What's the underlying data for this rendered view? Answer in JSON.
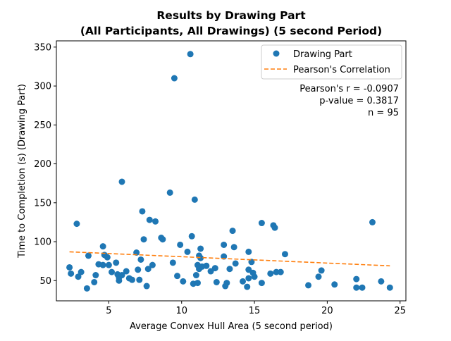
{
  "chart_data": {
    "type": "scatter",
    "title_line1": "Results by Drawing Part",
    "title_line2": "(All Participants, All Drawings) (5 second Period)",
    "xlabel": "Average Convex Hull Area (5 second period)",
    "ylabel": "Time to Completion (s) (Drawing Part)",
    "xlim": [
      1.4,
      25.4
    ],
    "ylim": [
      24,
      358
    ],
    "xticks": [
      5,
      10,
      15,
      20,
      25
    ],
    "yticks": [
      50,
      100,
      150,
      200,
      250,
      300,
      350
    ],
    "legend_position": "top-right",
    "series": [
      {
        "name": "Drawing Part",
        "type": "scatter",
        "color": "#1f77b4",
        "points": [
          [
            2.3,
            67
          ],
          [
            2.4,
            59
          ],
          [
            2.8,
            123
          ],
          [
            2.9,
            55
          ],
          [
            3.5,
            40
          ],
          [
            3.6,
            82
          ],
          [
            4.0,
            48
          ],
          [
            4.1,
            57
          ],
          [
            4.3,
            71
          ],
          [
            4.6,
            94
          ],
          [
            4.6,
            70
          ],
          [
            4.7,
            83
          ],
          [
            4.9,
            80
          ],
          [
            5.0,
            70
          ],
          [
            5.2,
            61
          ],
          [
            5.5,
            73
          ],
          [
            5.6,
            58
          ],
          [
            5.7,
            50
          ],
          [
            5.7,
            54
          ],
          [
            5.9,
            177
          ],
          [
            5.9,
            57
          ],
          [
            6.2,
            62
          ],
          [
            6.4,
            53
          ],
          [
            6.6,
            51
          ],
          [
            6.9,
            86
          ],
          [
            7.0,
            64
          ],
          [
            7.1,
            51
          ],
          [
            7.2,
            77
          ],
          [
            7.3,
            139
          ],
          [
            7.4,
            103
          ],
          [
            7.6,
            43
          ],
          [
            7.7,
            65
          ],
          [
            7.8,
            128
          ],
          [
            8.2,
            126
          ],
          [
            8.6,
            105
          ],
          [
            8.7,
            103
          ],
          [
            9.2,
            163
          ],
          [
            9.4,
            73
          ],
          [
            9.5,
            310
          ],
          [
            9.7,
            56
          ],
          [
            9.9,
            96
          ],
          [
            10.1,
            49
          ],
          [
            10.4,
            87
          ],
          [
            10.6,
            341
          ],
          [
            10.7,
            107
          ],
          [
            10.8,
            46
          ],
          [
            10.9,
            154
          ],
          [
            11.0,
            57
          ],
          [
            11.1,
            47
          ],
          [
            11.1,
            70
          ],
          [
            11.2,
            65
          ],
          [
            11.2,
            82
          ],
          [
            11.3,
            91
          ],
          [
            11.3,
            79
          ],
          [
            11.4,
            68
          ],
          [
            11.7,
            69
          ],
          [
            12.3,
            66
          ],
          [
            12.4,
            48
          ],
          [
            12.9,
            96
          ],
          [
            12.9,
            81
          ],
          [
            13.1,
            47
          ],
          [
            13.0,
            43
          ],
          [
            13.3,
            65
          ],
          [
            13.5,
            114
          ],
          [
            13.6,
            93
          ],
          [
            13.7,
            72
          ],
          [
            14.2,
            49
          ],
          [
            14.5,
            42
          ],
          [
            14.6,
            87
          ],
          [
            14.6,
            53
          ],
          [
            14.6,
            64
          ],
          [
            14.8,
            74
          ],
          [
            14.9,
            60
          ],
          [
            15.5,
            124
          ],
          [
            15.5,
            47
          ],
          [
            16.1,
            59
          ],
          [
            16.3,
            121
          ],
          [
            16.4,
            118
          ],
          [
            16.5,
            61
          ],
          [
            16.8,
            61
          ],
          [
            17.1,
            84
          ],
          [
            18.7,
            44
          ],
          [
            19.4,
            55
          ],
          [
            19.6,
            63
          ],
          [
            22.0,
            52
          ],
          [
            22.0,
            41
          ],
          [
            22.4,
            41
          ],
          [
            23.1,
            125
          ],
          [
            23.7,
            49
          ],
          [
            24.3,
            41
          ],
          [
            3.1,
            61
          ],
          [
            8.0,
            70
          ],
          [
            12.0,
            62
          ],
          [
            15.0,
            55
          ],
          [
            20.5,
            45
          ]
        ]
      },
      {
        "name": "Pearson's Correlation",
        "type": "line",
        "style": "dashed",
        "color": "#ff7f0e",
        "points": [
          [
            2.3,
            87
          ],
          [
            24.3,
            69
          ]
        ]
      }
    ],
    "annotation": {
      "lines": [
        "Pearson's r = -0.0907",
        "p-value = 0.3817",
        "n = 95"
      ],
      "align": "right"
    }
  }
}
